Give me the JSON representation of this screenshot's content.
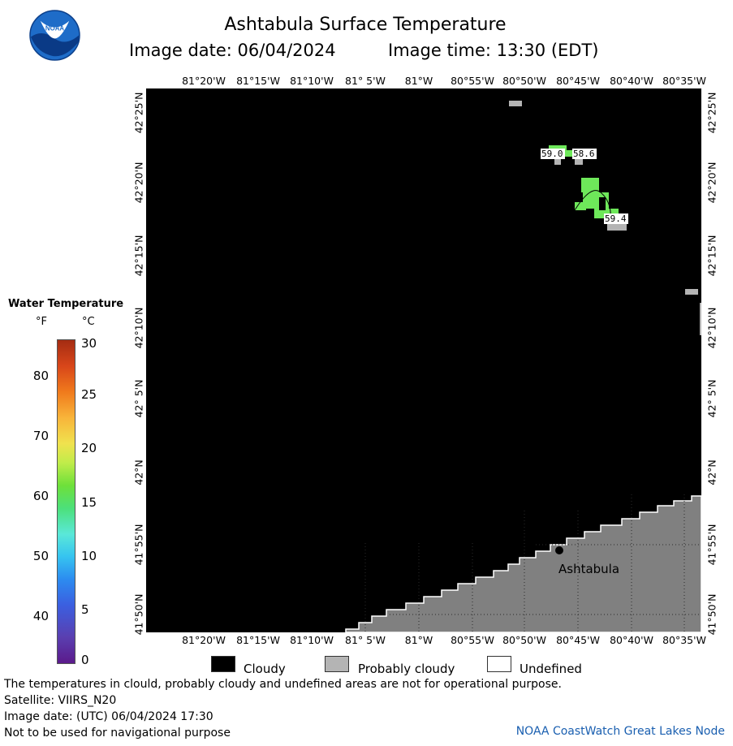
{
  "header": {
    "title": "Ashtabula Surface Temperature",
    "image_date_label": "Image date: 06/04/2024",
    "image_time_label": "Image time: 13:30 (EDT)"
  },
  "logo": {
    "text": "NOAA"
  },
  "map": {
    "lon_labels": [
      "81°20'W",
      "81°15'W",
      "81°10'W",
      "81° 5'W",
      "81°W",
      "80°55'W",
      "80°50'W",
      "80°45'W",
      "80°40'W",
      "80°35'W"
    ],
    "lat_labels": [
      "42°25'N",
      "42°20'N",
      "42°15'N",
      "42°10'N",
      "42° 5'N",
      "42°N",
      "41°55'N",
      "41°50'N"
    ],
    "city_label": "Ashtabula",
    "temp_labels": [
      "59.0",
      "58.6",
      "59.4"
    ],
    "colors": {
      "water": "#000000",
      "land": "#808080",
      "probably_cloudy": "#b4b4b4",
      "sst_green": "#6ee85a"
    }
  },
  "colorbar": {
    "title": "Water Temperature",
    "unit_f": "°F",
    "unit_c": "°C",
    "ticks_f": [
      "80",
      "70",
      "60",
      "50",
      "40"
    ],
    "ticks_c": [
      "30",
      "25",
      "20",
      "15",
      "10",
      "5",
      "0"
    ]
  },
  "legend": {
    "cloudy": "Cloudy",
    "probably_cloudy": "Probably cloudy",
    "undefined": "Undefined"
  },
  "footer": {
    "disclaimer": "The temperatures in clould, probably cloudy and undefined areas are not for operational purpose.",
    "satellite": "Satellite: VIIRS_N20",
    "utc_date": "Image date: (UTC) 06/04/2024  17:30",
    "nav_warning": "Not to be used for navigational purpose",
    "credit": "NOAA CoastWatch Great Lakes Node"
  }
}
